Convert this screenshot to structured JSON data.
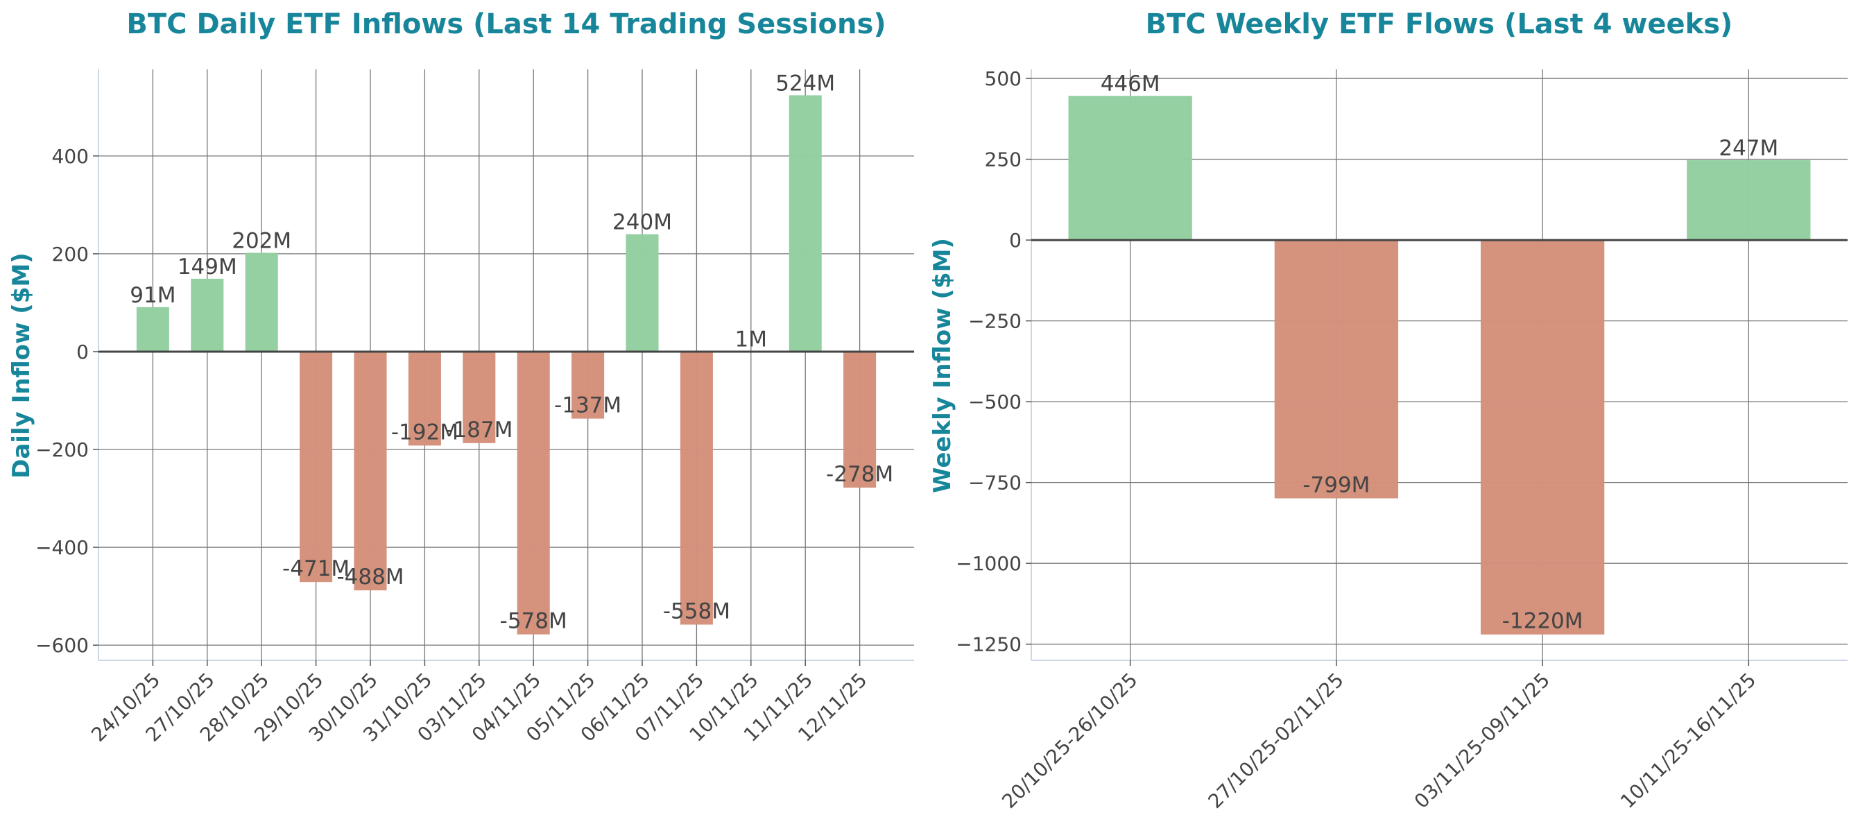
{
  "colors": {
    "positive": "#93cfa0",
    "negative": "#d4907a",
    "title": "#17869a",
    "text": "#444444",
    "grid": "#777777",
    "zero_line": "#444444"
  },
  "chart_data": [
    {
      "type": "bar",
      "title": "BTC Daily ETF Inflows (Last 14 Trading Sessions)",
      "xlabel": "",
      "ylabel": "Daily Inflow ($M)",
      "categories": [
        "24/10/25",
        "27/10/25",
        "28/10/25",
        "29/10/25",
        "30/10/25",
        "31/10/25",
        "03/11/25",
        "04/11/25",
        "05/11/25",
        "06/11/25",
        "07/11/25",
        "10/11/25",
        "11/11/25",
        "12/11/25"
      ],
      "values": [
        91,
        149,
        202,
        -471,
        -488,
        -192,
        -187,
        -578,
        -137,
        240,
        -558,
        1,
        524,
        -278
      ],
      "data_labels": [
        "91M",
        "149M",
        "202M",
        "-471M",
        "-488M",
        "-192M",
        "-187M",
        "-578M",
        "-137M",
        "240M",
        "-558M",
        "1M",
        "524M",
        "-278M"
      ],
      "yticks": [
        -600,
        -400,
        -200,
        0,
        200,
        400
      ],
      "ylim": [
        -631,
        577
      ],
      "grid": true
    },
    {
      "type": "bar",
      "title": "BTC Weekly ETF Flows (Last 4 weeks)",
      "xlabel": "",
      "ylabel": "Weekly Inflow ($M)",
      "categories": [
        "20/10/25-26/10/25",
        "27/10/25-02/11/25",
        "03/11/25-09/11/25",
        "10/11/25-16/11/25"
      ],
      "values": [
        446,
        -799,
        -1220,
        247
      ],
      "data_labels": [
        "446M",
        "-799M",
        "-1220M",
        "247M"
      ],
      "yticks": [
        -1250,
        -1000,
        -750,
        -500,
        -250,
        0,
        250,
        500
      ],
      "ylim": [
        -1300,
        528
      ],
      "grid": true
    }
  ]
}
